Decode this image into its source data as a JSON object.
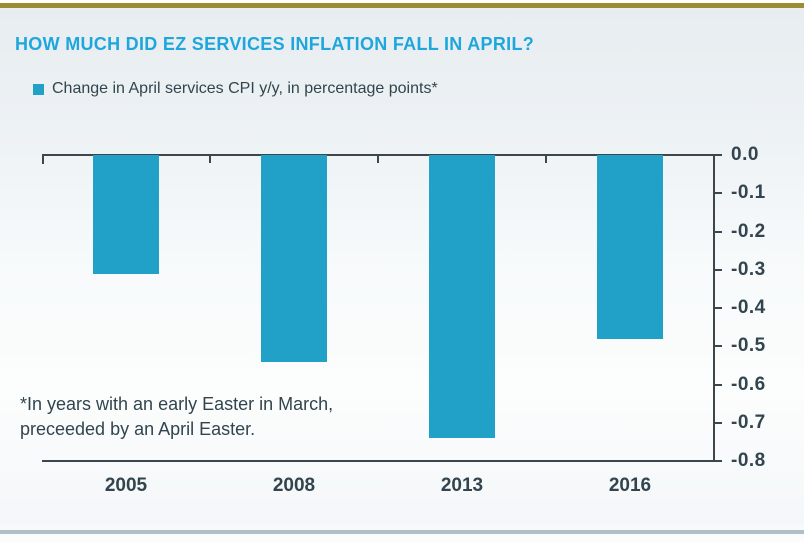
{
  "page": {
    "title": "HOW MUCH DID EZ SERVICES INFLATION FALL IN APRIL?"
  },
  "legend": {
    "label": "Change in April services CPI y/y, in percentage points*"
  },
  "footnote": {
    "line1": "*In years with an early Easter in March,",
    "line2": "preceeded by an April Easter."
  },
  "colors": {
    "title_blue": "#1ea7dc",
    "bar_teal": "#21a0c8",
    "text_dark": "#32454e",
    "axis": "#3b474d",
    "gold_rule": "#9b8d33",
    "bottom_divider": "#b3bfc7"
  },
  "chart_data": {
    "type": "bar",
    "title": "HOW MUCH DID EZ SERVICES INFLATION FALL IN APRIL?",
    "legend_entries": [
      "Change in April services CPI y/y, in percentage points*"
    ],
    "legend_position": "top-left",
    "categories": [
      "2005",
      "2008",
      "2013",
      "2016"
    ],
    "values": [
      -0.31,
      -0.54,
      -0.74,
      -0.48
    ],
    "xlabel": "",
    "ylabel": "",
    "ylim": [
      -0.8,
      0.0
    ],
    "yticks": [
      "0.0",
      "-0.1",
      "-0.2",
      "-0.3",
      "-0.4",
      "-0.5",
      "-0.6",
      "-0.7",
      "-0.8"
    ],
    "y_axis_side": "right",
    "grid": false,
    "bar_color": "#21a0c8",
    "annotation": "*In years with an early Easter in March, preceeded by an April Easter."
  }
}
